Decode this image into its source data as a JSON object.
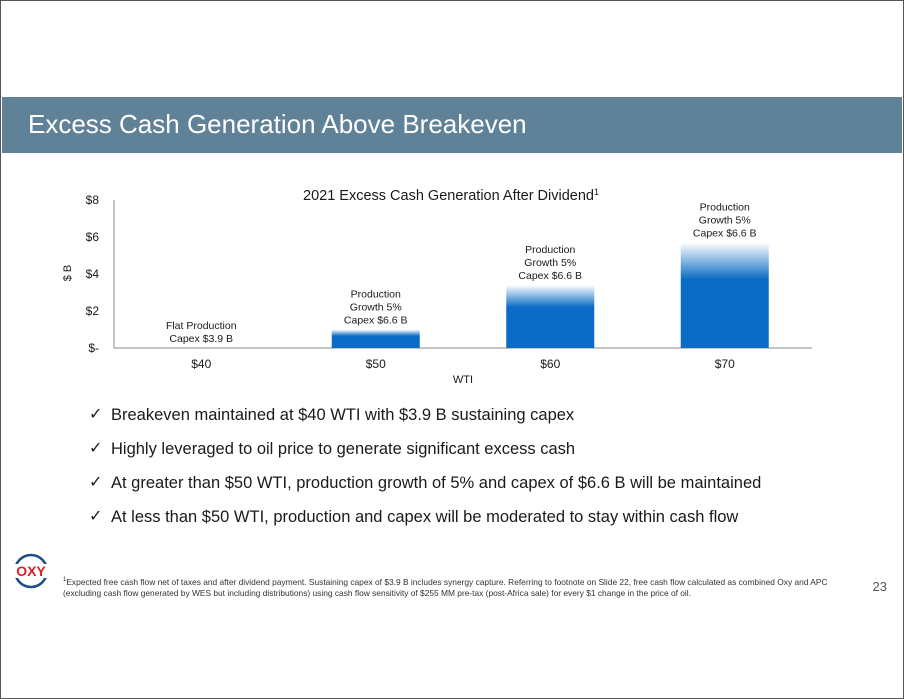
{
  "slide": {
    "title": "Excess Cash Generation Above Breakeven",
    "page_number": "23"
  },
  "chart_data": {
    "type": "bar",
    "title": "2021 Excess Cash Generation After Dividend",
    "title_superscript": "1",
    "xlabel": "WTI",
    "ylabel": "$ B",
    "categories": [
      "$40",
      "$50",
      "$60",
      "$70"
    ],
    "values": [
      0,
      1.0,
      3.4,
      5.7
    ],
    "ylim": [
      0,
      8
    ],
    "yticks": [
      {
        "value": 0,
        "label": "$-"
      },
      {
        "value": 2,
        "label": "$2"
      },
      {
        "value": 4,
        "label": "$4"
      },
      {
        "value": 6,
        "label": "$6"
      },
      {
        "value": 8,
        "label": "$8"
      }
    ],
    "bar_labels": [
      [
        "Flat Production",
        "Capex $3.9 B"
      ],
      [
        "Production",
        "Growth 5%",
        "Capex $6.6 B"
      ],
      [
        "Production",
        "Growth 5%",
        "Capex $6.6 B"
      ],
      [
        "Production",
        "Growth 5%",
        "Capex $6.6 B"
      ]
    ],
    "bar_color": "#0a6cc4",
    "grid": false
  },
  "bullets": [
    "Breakeven maintained at $40 WTI with $3.9 B sustaining capex",
    "Highly leveraged to oil price to generate significant excess cash",
    "At greater than $50 WTI, production growth of 5% and capex of $6.6 B will be maintained",
    "At less than $50 WTI, production and capex will be moderated to stay within cash flow"
  ],
  "footnote": {
    "marker": "1",
    "text": "Expected free cash flow net of taxes and after dividend payment. Sustaining capex of $3.9 B includes synergy capture. Referring to footnote on Slide 22, free cash flow calculated as combined Oxy and APC (excluding cash flow generated by WES but including distributions) using cash flow sensitivity of $255 MM pre-tax (post-Africa sale) for every $1 change in the price of oil."
  },
  "logo": {
    "text": "OXY",
    "color": "#d8202a"
  },
  "colors": {
    "title_bar": "#5f8299",
    "bar": "#0a6cc4"
  }
}
